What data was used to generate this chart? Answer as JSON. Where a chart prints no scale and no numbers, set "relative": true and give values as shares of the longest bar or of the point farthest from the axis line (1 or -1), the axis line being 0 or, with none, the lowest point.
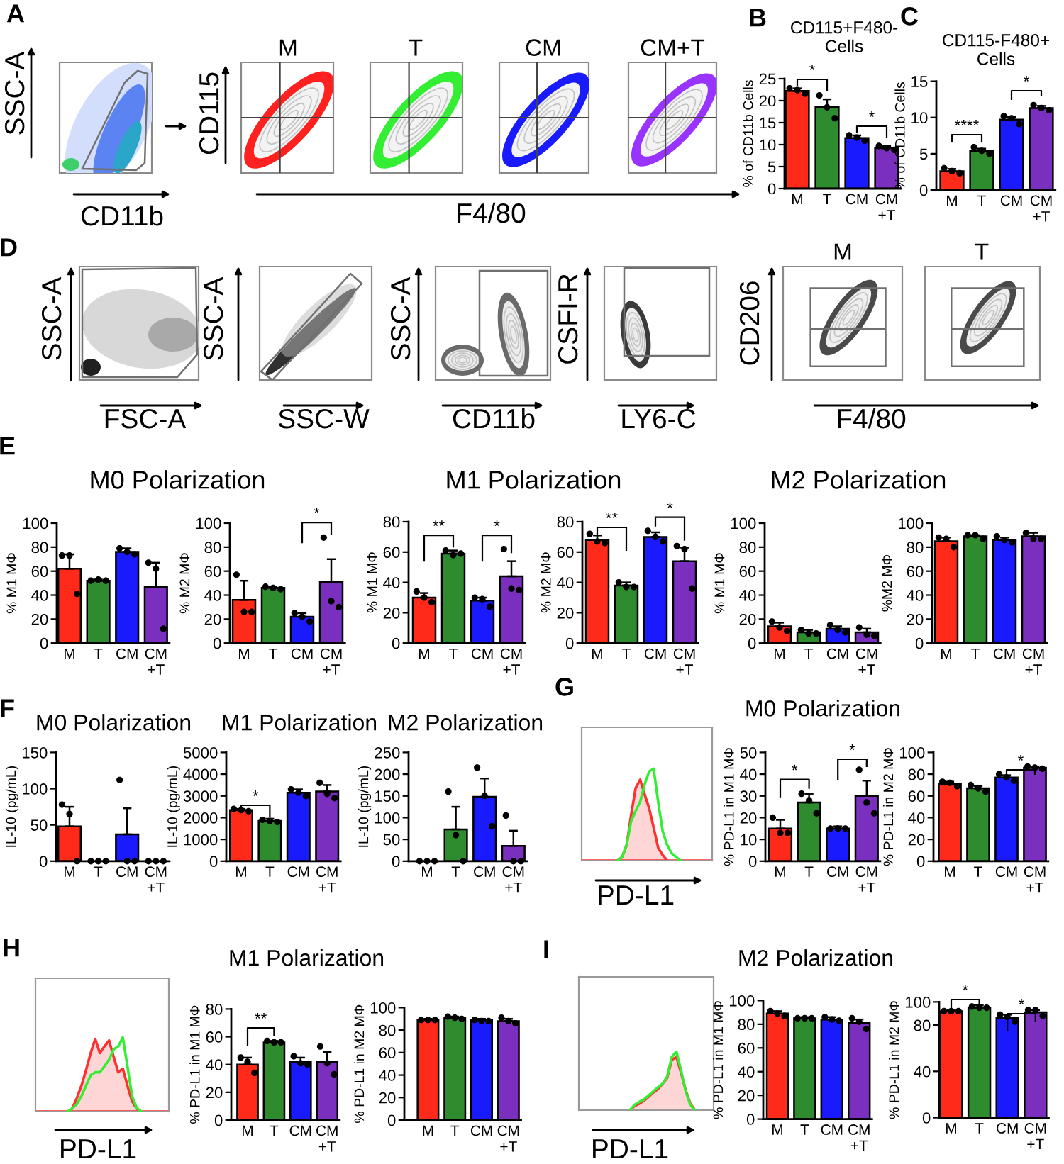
{
  "chart_data": [
    {
      "type": "other",
      "annotations": [
        "A",
        "SSC-A",
        "CD11b",
        "CD115",
        "F4/80",
        "M",
        "T",
        "CM",
        "CM+T"
      ]
    },
    {
      "type": "bar",
      "title": "CD115+F480-\nCells",
      "ylabel": "% of CD11b Cells",
      "categories": [
        "M",
        "T",
        "CM",
        "CM\n+T"
      ],
      "ylim": [
        0,
        25
      ],
      "yticks": [
        0,
        5,
        10,
        15,
        20,
        25
      ],
      "series": [
        {
          "type": "bar",
          "colors": [
            "#ff2a1a",
            "#2e8b2e",
            "#1a1aff",
            "#7b2fbe"
          ],
          "values": [
            22.2,
            18.5,
            11.5,
            9.2
          ],
          "errors": [
            [
              22.2,
              22.8
            ],
            [
              18.5,
              20.3
            ],
            [
              11.5,
              12.1
            ],
            [
              9.2,
              9.7
            ]
          ]
        },
        {
          "type": "scatter",
          "color": "#000000",
          "marker": "circle",
          "x": [
            "M",
            "M",
            "M",
            "T",
            "T",
            "T",
            "CM",
            "CM",
            "CM",
            "CM\n+T",
            "CM\n+T",
            "CM\n+T"
          ],
          "values": [
            22.8,
            22.4,
            21.6,
            21.2,
            18.5,
            16.0,
            12.1,
            11.6,
            10.9,
            9.7,
            9.2,
            8.8
          ]
        }
      ],
      "annotations": [
        "B",
        "*",
        "*"
      ]
    },
    {
      "type": "bar",
      "title": "CD115-F480+\nCells",
      "ylabel": "% of CD11b Cells",
      "categories": [
        "M",
        "T",
        "CM",
        "CM\n+T"
      ],
      "ylim": [
        0,
        15
      ],
      "yticks": [
        0,
        5,
        10,
        15
      ],
      "series": [
        {
          "type": "bar",
          "colors": [
            "#ff2a1a",
            "#2e8b2e",
            "#1a1aff",
            "#7b2fbe"
          ],
          "values": [
            2.6,
            5.4,
            9.7,
            11.3
          ],
          "errors": [
            [
              2.6,
              2.9
            ],
            [
              5.4,
              5.7
            ],
            [
              9.7,
              10.1
            ],
            [
              11.3,
              11.6
            ]
          ]
        },
        {
          "type": "scatter",
          "color": "#000000",
          "marker": "circle",
          "x": [
            "M",
            "M",
            "M",
            "T",
            "T",
            "T",
            "CM",
            "CM",
            "CM",
            "CM\n+T",
            "CM\n+T",
            "CM\n+T"
          ],
          "values": [
            3.0,
            2.6,
            2.3,
            5.9,
            5.4,
            5.0,
            10.2,
            9.9,
            9.1,
            11.7,
            11.3,
            11.0
          ]
        }
      ],
      "annotations": [
        "C",
        "****",
        "*"
      ]
    },
    {
      "type": "other",
      "annotations": [
        "D",
        "SSC-A",
        "SSC-A",
        "SSC-A",
        "CSFI-R",
        "CD206",
        "FSC-A",
        "SSC-W",
        "CD11b",
        "LY6-C",
        "F4/80",
        "M",
        "T"
      ]
    },
    {
      "type": "bar",
      "title": "M0 Polarization",
      "ylabel": "% M1 MΦ",
      "categories": [
        "M",
        "T",
        "CM",
        "CM\n+T"
      ],
      "ylim": [
        0,
        100
      ],
      "yticks": [
        0,
        20,
        40,
        60,
        80,
        100
      ],
      "series": [
        {
          "type": "bar",
          "colors": [
            "#ff2a1a",
            "#2e8b2e",
            "#1a1aff",
            "#7b2fbe"
          ],
          "values": [
            62,
            52,
            76,
            47
          ],
          "errors": [
            [
              62,
              74
            ],
            [
              52,
              53
            ],
            [
              76,
              79
            ],
            [
              47,
              67
            ]
          ]
        },
        {
          "type": "scatter",
          "color": "#000000",
          "marker": "circle",
          "x": [
            "M",
            "M",
            "M",
            "T",
            "T",
            "T",
            "CM",
            "CM",
            "CM",
            "CM\n+T",
            "CM\n+T",
            "CM\n+T"
          ],
          "values": [
            73,
            73,
            41,
            52,
            53,
            52,
            79,
            76,
            74,
            67,
            62,
            12
          ]
        }
      ],
      "annotations": [
        "E"
      ]
    },
    {
      "type": "bar",
      "ylabel": "% M2 MΦ",
      "categories": [
        "M",
        "T",
        "CM",
        "CM\n+T"
      ],
      "ylim": [
        0,
        100
      ],
      "yticks": [
        0,
        20,
        40,
        60,
        80,
        100
      ],
      "series": [
        {
          "type": "bar",
          "colors": [
            "#ff2a1a",
            "#2e8b2e",
            "#1a1aff",
            "#7b2fbe"
          ],
          "values": [
            36,
            46,
            22,
            51
          ],
          "errors": [
            [
              36,
              52
            ],
            [
              46,
              47
            ],
            [
              22,
              25
            ],
            [
              51,
              70
            ]
          ]
        },
        {
          "type": "scatter",
          "color": "#000000",
          "marker": "circle",
          "x": [
            "M",
            "M",
            "M",
            "T",
            "T",
            "T",
            "CM",
            "CM",
            "CM",
            "CM\n+T",
            "CM\n+T",
            "CM\n+T"
          ],
          "values": [
            57,
            26,
            26,
            47,
            46,
            45,
            25,
            22,
            18,
            88,
            35,
            30
          ]
        }
      ],
      "annotations": [
        "*"
      ]
    },
    {
      "type": "bar",
      "title": "M1 Polarization",
      "ylabel": "% M1 MΦ",
      "categories": [
        "M",
        "T",
        "CM",
        "CM\n+T"
      ],
      "ylim": [
        0,
        80
      ],
      "yticks": [
        0,
        20,
        40,
        60,
        80
      ],
      "series": [
        {
          "type": "bar",
          "colors": [
            "#ff2a1a",
            "#2e8b2e",
            "#1a1aff",
            "#7b2fbe"
          ],
          "values": [
            30,
            59,
            28,
            44
          ],
          "errors": [
            [
              30,
              33
            ],
            [
              59,
              61
            ],
            [
              28,
              30
            ],
            [
              44,
              54
            ]
          ]
        },
        {
          "type": "scatter",
          "color": "#000000",
          "marker": "circle",
          "x": [
            "M",
            "M",
            "M",
            "T",
            "T",
            "T",
            "CM",
            "CM",
            "CM",
            "CM\n+T",
            "CM\n+T",
            "CM\n+T"
          ],
          "values": [
            34,
            30,
            27,
            61,
            58,
            59,
            30,
            29,
            24,
            62,
            36,
            35
          ]
        }
      ],
      "annotations": [
        "**",
        "*"
      ]
    },
    {
      "type": "bar",
      "ylabel": "% M2 MΦ",
      "categories": [
        "M",
        "T",
        "CM",
        "CM\n+T"
      ],
      "ylim": [
        0,
        80
      ],
      "yticks": [
        0,
        20,
        40,
        60,
        80
      ],
      "series": [
        {
          "type": "bar",
          "colors": [
            "#ff2a1a",
            "#2e8b2e",
            "#1a1aff",
            "#7b2fbe"
          ],
          "values": [
            68,
            38,
            70,
            54
          ],
          "errors": [
            [
              68,
              71
            ],
            [
              38,
              40
            ],
            [
              70,
              73
            ],
            [
              54,
              63
            ]
          ]
        },
        {
          "type": "scatter",
          "color": "#000000",
          "marker": "circle",
          "x": [
            "M",
            "M",
            "M",
            "T",
            "T",
            "T",
            "CM",
            "CM",
            "CM",
            "CM\n+T",
            "CM\n+T",
            "CM\n+T"
          ],
          "values": [
            72,
            67,
            66,
            40,
            37,
            37,
            74,
            70,
            67,
            64,
            62,
            36
          ]
        }
      ],
      "annotations": [
        "**",
        "*"
      ]
    },
    {
      "type": "bar",
      "title": "M2 Polarization",
      "ylabel": "% M1 MΦ",
      "categories": [
        "M",
        "T",
        "CM",
        "CM\n+T"
      ],
      "ylim": [
        0,
        100
      ],
      "yticks": [
        0,
        20,
        40,
        60,
        80,
        100
      ],
      "series": [
        {
          "type": "bar",
          "colors": [
            "#ff2a1a",
            "#2e8b2e",
            "#1a1aff",
            "#7b2fbe"
          ],
          "values": [
            14,
            9,
            12,
            9
          ],
          "errors": [
            [
              14,
              17
            ],
            [
              9,
              11
            ],
            [
              12,
              14
            ],
            [
              9,
              12
            ]
          ]
        },
        {
          "type": "scatter",
          "color": "#000000",
          "marker": "circle",
          "x": [
            "M",
            "M",
            "M",
            "T",
            "T",
            "T",
            "CM",
            "CM",
            "CM",
            "CM\n+T",
            "CM\n+T",
            "CM\n+T"
          ],
          "values": [
            18,
            13,
            10,
            11,
            8,
            8,
            15,
            11,
            9,
            13,
            7,
            6
          ]
        }
      ]
    },
    {
      "type": "bar",
      "ylabel": "%M2 MΦ",
      "categories": [
        "M",
        "T",
        "CM",
        "CM\n+T"
      ],
      "ylim": [
        0,
        100
      ],
      "yticks": [
        0,
        20,
        40,
        60,
        80,
        100
      ],
      "series": [
        {
          "type": "bar",
          "colors": [
            "#ff2a1a",
            "#2e8b2e",
            "#1a1aff",
            "#7b2fbe"
          ],
          "values": [
            85,
            89,
            86,
            89
          ],
          "errors": [
            [
              85,
              88
            ],
            [
              89,
              90
            ],
            [
              86,
              88
            ],
            [
              89,
              92
            ]
          ]
        },
        {
          "type": "scatter",
          "color": "#000000",
          "marker": "circle",
          "x": [
            "M",
            "M",
            "M",
            "T",
            "T",
            "T",
            "CM",
            "CM",
            "CM",
            "CM\n+T",
            "CM\n+T",
            "CM\n+T"
          ],
          "values": [
            88,
            87,
            80,
            90,
            90,
            87,
            89,
            86,
            84,
            92,
            87,
            87
          ]
        }
      ]
    },
    {
      "type": "bar",
      "title": "M0 Polarization",
      "ylabel": "IL-10 (pg/mL)",
      "categories": [
        "M",
        "T",
        "CM",
        "CM\n+T"
      ],
      "ylim": [
        0,
        150
      ],
      "yticks": [
        0,
        50,
        100,
        150
      ],
      "series": [
        {
          "type": "bar",
          "colors": [
            "#ff2a1a",
            "#2e8b2e",
            "#1a1aff",
            "#7b2fbe"
          ],
          "values": [
            48,
            0,
            37,
            0
          ],
          "errors": [
            [
              48,
              75
            ],
            null,
            [
              37,
              73
            ],
            null
          ]
        },
        {
          "type": "scatter",
          "color": "#000000",
          "marker": "circle",
          "x": [
            "M",
            "M",
            "M",
            "T",
            "T",
            "T",
            "CM",
            "CM",
            "CM",
            "CM\n+T",
            "CM\n+T",
            "CM\n+T"
          ],
          "values": [
            78,
            65,
            0,
            0,
            0,
            0,
            112,
            0,
            0,
            0,
            0,
            0
          ]
        }
      ],
      "annotations": [
        "F"
      ]
    },
    {
      "type": "bar",
      "title": "M1 Polarization",
      "ylabel": "IL-10 (pg/mL)",
      "categories": [
        "M",
        "T",
        "CM",
        "CM\n+T"
      ],
      "ylim": [
        0,
        5000
      ],
      "yticks": [
        0,
        1000,
        2000,
        3000,
        4000,
        5000
      ],
      "series": [
        {
          "type": "bar",
          "colors": [
            "#ff2a1a",
            "#2e8b2e",
            "#1a1aff",
            "#7b2fbe"
          ],
          "values": [
            2350,
            1850,
            3150,
            3200
          ],
          "errors": [
            [
              2350,
              2400
            ],
            [
              1850,
              1950
            ],
            [
              3150,
              3300
            ],
            [
              3200,
              3500
            ]
          ]
        },
        {
          "type": "scatter",
          "color": "#000000",
          "marker": "circle",
          "x": [
            "M",
            "M",
            "M",
            "T",
            "T",
            "T",
            "CM",
            "CM",
            "CM",
            "CM\n+T",
            "CM\n+T",
            "CM\n+T"
          ],
          "values": [
            2400,
            2350,
            2300,
            1900,
            1850,
            1800,
            3300,
            3150,
            3000,
            3600,
            3100,
            2900
          ]
        }
      ],
      "annotations": [
        "*"
      ]
    },
    {
      "type": "bar",
      "title": "M2 Polarization",
      "ylabel": "IL-10 (pg/mL)",
      "categories": [
        "M",
        "T",
        "CM",
        "CM\n+T"
      ],
      "ylim": [
        0,
        250
      ],
      "yticks": [
        0,
        50,
        100,
        150,
        200,
        250
      ],
      "series": [
        {
          "type": "bar",
          "colors": [
            "#ff2a1a",
            "#2e8b2e",
            "#1a1aff",
            "#7b2fbe"
          ],
          "values": [
            0,
            73,
            148,
            35
          ],
          "errors": [
            null,
            [
              73,
              125
            ],
            [
              148,
              190
            ],
            [
              35,
              70
            ]
          ]
        },
        {
          "type": "scatter",
          "color": "#000000",
          "marker": "circle",
          "x": [
            "M",
            "M",
            "M",
            "T",
            "T",
            "T",
            "CM",
            "CM",
            "CM",
            "CM\n+T",
            "CM\n+T",
            "CM\n+T"
          ],
          "values": [
            0,
            0,
            0,
            160,
            60,
            0,
            215,
            150,
            80,
            105,
            0,
            0
          ]
        }
      ]
    },
    {
      "type": "area",
      "xlabel": "PD-L1",
      "relative": true,
      "categories": [
        null,
        null,
        null,
        null,
        null,
        null,
        null,
        null,
        null,
        null,
        null,
        null,
        null,
        null,
        null,
        null,
        null,
        null,
        null,
        null,
        null,
        null,
        null,
        null,
        null,
        null,
        null,
        null,
        null,
        null
      ],
      "series": [
        {
          "type": "area",
          "color": "#ff3030",
          "values": [
            0,
            0,
            0,
            0,
            0,
            0,
            0,
            0,
            0,
            0.04,
            0.17,
            0.5,
            0.79,
            0.88,
            0.72,
            0.57,
            0.36,
            0.14,
            0.06,
            0,
            0,
            0,
            0,
            0,
            0,
            0,
            0,
            0,
            0,
            0
          ]
        },
        {
          "type": "line",
          "color": "#33ee33",
          "values": [
            null,
            null,
            null,
            null,
            null,
            null,
            null,
            null,
            0,
            0.04,
            0.17,
            0.43,
            0.54,
            0.64,
            0.83,
            0.97,
            1.0,
            0.64,
            0.32,
            0.17,
            0.08,
            0.04,
            0,
            null,
            null,
            null,
            null,
            null,
            null,
            null
          ]
        }
      ],
      "annotations": [
        "G"
      ]
    },
    {
      "type": "bar",
      "title": "M0 Polarization",
      "ylabel": "% PD-L1 in M1 MΦ",
      "categories": [
        "M",
        "T",
        "CM",
        "CM\n+T"
      ],
      "ylim": [
        0,
        50
      ],
      "yticks": [
        0,
        10,
        20,
        30,
        40,
        50
      ],
      "series": [
        {
          "type": "bar",
          "colors": [
            "#ff2a1a",
            "#2e8b2e",
            "#1a1aff",
            "#7b2fbe"
          ],
          "values": [
            15,
            27,
            15,
            30
          ],
          "errors": [
            [
              15,
              19
            ],
            [
              27,
              31
            ],
            [
              15,
              16
            ],
            [
              30,
              37
            ]
          ]
        },
        {
          "type": "scatter",
          "color": "#000000",
          "marker": "circle",
          "x": [
            "M",
            "M",
            "M",
            "T",
            "T",
            "T",
            "CM",
            "CM",
            "CM",
            "CM\n+T",
            "CM\n+T",
            "CM\n+T"
          ],
          "values": [
            20,
            13,
            13,
            31,
            28,
            22,
            15,
            15,
            15,
            42,
            27,
            22
          ]
        }
      ],
      "annotations": [
        "*",
        "*"
      ]
    },
    {
      "type": "bar",
      "ylabel": "% PD-L1 in M2 MΦ",
      "categories": [
        "M",
        "T",
        "CM",
        "CM\n+T"
      ],
      "ylim": [
        0,
        100
      ],
      "yticks": [
        0,
        20,
        40,
        60,
        80,
        100
      ],
      "series": [
        {
          "type": "bar",
          "colors": [
            "#ff2a1a",
            "#2e8b2e",
            "#1a1aff",
            "#7b2fbe"
          ],
          "values": [
            71,
            67,
            77,
            86
          ],
          "errors": [
            [
              71,
              73
            ],
            [
              67,
              69
            ],
            [
              77,
              79
            ],
            [
              86,
              87
            ]
          ]
        },
        {
          "type": "scatter",
          "color": "#000000",
          "marker": "circle",
          "x": [
            "M",
            "M",
            "M",
            "T",
            "T",
            "T",
            "CM",
            "CM",
            "CM",
            "CM\n+T",
            "CM\n+T",
            "CM\n+T"
          ],
          "values": [
            73,
            72,
            69,
            70,
            67,
            64,
            80,
            77,
            74,
            87,
            86,
            85
          ]
        }
      ],
      "annotations": [
        "*"
      ]
    },
    {
      "type": "area",
      "xlabel": "PD-L1",
      "relative": true,
      "categories": [
        null,
        null,
        null,
        null,
        null,
        null,
        null,
        null,
        null,
        null,
        null,
        null,
        null,
        null,
        null,
        null,
        null,
        null,
        null,
        null,
        null,
        null,
        null,
        null,
        null,
        null,
        null,
        null,
        null,
        null
      ],
      "series": [
        {
          "type": "area",
          "color": "#ff3030",
          "values": [
            0,
            0,
            0,
            0,
            0,
            0,
            0,
            0,
            0.04,
            0.18,
            0.35,
            0.56,
            0.79,
            0.98,
            0.79,
            0.88,
            0.96,
            0.74,
            0.53,
            0.58,
            0.35,
            0.14,
            0.04,
            0,
            0,
            0,
            0,
            0,
            0,
            0
          ]
        },
        {
          "type": "line",
          "color": "#33ee33",
          "values": [
            null,
            null,
            null,
            null,
            null,
            null,
            null,
            0,
            0.04,
            0.1,
            0.21,
            0.35,
            0.49,
            0.53,
            0.53,
            0.61,
            0.7,
            0.84,
            0.88,
            1.0,
            0.61,
            0.21,
            0.05,
            0,
            null,
            null,
            null,
            null,
            null,
            null
          ]
        }
      ],
      "annotations": [
        "H"
      ]
    },
    {
      "type": "bar",
      "title": "M1 Polarization",
      "ylabel": "% PD-L1 in M1 MΦ",
      "categories": [
        "M",
        "T",
        "CM",
        "CM\n+T"
      ],
      "ylim": [
        0,
        80
      ],
      "yticks": [
        0,
        20,
        40,
        60,
        80
      ],
      "series": [
        {
          "type": "bar",
          "colors": [
            "#ff2a1a",
            "#2e8b2e",
            "#1a1aff",
            "#7b2fbe"
          ],
          "values": [
            40,
            56,
            42,
            42
          ],
          "errors": [
            [
              40,
              45
            ],
            [
              56,
              57
            ],
            [
              42,
              45
            ],
            [
              42,
              49
            ]
          ]
        },
        {
          "type": "scatter",
          "color": "#000000",
          "marker": "circle",
          "x": [
            "M",
            "M",
            "M",
            "T",
            "T",
            "T",
            "CM",
            "CM",
            "CM",
            "CM\n+T",
            "CM\n+T",
            "CM\n+T"
          ],
          "values": [
            45,
            42,
            34,
            57,
            56,
            56,
            46,
            41,
            40,
            53,
            41,
            33
          ]
        }
      ],
      "annotations": [
        "**"
      ]
    },
    {
      "type": "bar",
      "ylabel": "% PD-L1 in M2 MΦ",
      "categories": [
        "M",
        "T",
        "CM",
        "CM\n+T"
      ],
      "ylim": [
        0,
        100
      ],
      "yticks": [
        0,
        20,
        40,
        60,
        80,
        100
      ],
      "series": [
        {
          "type": "bar",
          "colors": [
            "#ff2a1a",
            "#2e8b2e",
            "#1a1aff",
            "#7b2fbe"
          ],
          "values": [
            89,
            91,
            89,
            88
          ],
          "errors": [
            [
              89,
              90
            ],
            [
              91,
              92
            ],
            [
              89,
              90
            ],
            [
              88,
              90
            ]
          ]
        },
        {
          "type": "scatter",
          "color": "#000000",
          "marker": "circle",
          "x": [
            "M",
            "M",
            "M",
            "T",
            "T",
            "T",
            "CM",
            "CM",
            "CM",
            "CM\n+T",
            "CM\n+T",
            "CM\n+T"
          ],
          "values": [
            89,
            89,
            89,
            92,
            91,
            90,
            89,
            88,
            88,
            91,
            88,
            86
          ]
        }
      ]
    },
    {
      "type": "area",
      "xlabel": "PD-L1",
      "relative": true,
      "categories": [
        null,
        null,
        null,
        null,
        null,
        null,
        null,
        null,
        null,
        null,
        null,
        null,
        null,
        null,
        null,
        null,
        null,
        null,
        null,
        null,
        null,
        null,
        null,
        null,
        null,
        null,
        null,
        null,
        null,
        null
      ],
      "series": [
        {
          "type": "area",
          "color": "#ff3030",
          "values": [
            0,
            0,
            0,
            0,
            0,
            0,
            0,
            0,
            0,
            0,
            0,
            0,
            0.07,
            0.11,
            0.16,
            0.23,
            0.3,
            0.36,
            0.45,
            0.55,
            0.86,
            0.91,
            0.64,
            0.34,
            0.11,
            0,
            0,
            0,
            0,
            0
          ]
        },
        {
          "type": "line",
          "color": "#33ee33",
          "values": [
            null,
            null,
            null,
            null,
            null,
            null,
            null,
            null,
            null,
            null,
            null,
            0,
            0.09,
            0.14,
            0.18,
            0.25,
            0.32,
            0.39,
            0.45,
            0.57,
            0.91,
            1.0,
            0.68,
            0.32,
            0.09,
            0,
            null,
            null,
            null,
            null
          ]
        }
      ],
      "annotations": [
        "I"
      ]
    },
    {
      "type": "bar",
      "title": "M2 Polarization",
      "ylabel": "% PD-L1 in M1 MΦ",
      "categories": [
        "M",
        "T",
        "CM",
        "CM\n+T"
      ],
      "ylim": [
        0,
        100
      ],
      "yticks": [
        0,
        20,
        40,
        60,
        80,
        100
      ],
      "series": [
        {
          "type": "bar",
          "colors": [
            "#ff2a1a",
            "#2e8b2e",
            "#1a1aff",
            "#7b2fbe"
          ],
          "values": [
            89,
            85,
            84,
            81
          ],
          "errors": [
            [
              89,
              91
            ],
            [
              85,
              86
            ],
            [
              84,
              86
            ],
            [
              81,
              84
            ]
          ]
        },
        {
          "type": "scatter",
          "color": "#000000",
          "marker": "circle",
          "x": [
            "M",
            "M",
            "M",
            "T",
            "T",
            "T",
            "CM",
            "CM",
            "CM",
            "CM\n+T",
            "CM\n+T",
            "CM\n+T"
          ],
          "values": [
            91,
            89,
            87,
            85,
            85,
            85,
            86,
            84,
            83,
            85,
            82,
            76
          ]
        }
      ]
    },
    {
      "type": "bar",
      "ylabel": "% PD-L1 in M2 MΦ",
      "categories": [
        "M",
        "T",
        "CM",
        "CM\n+T"
      ],
      "ylim": [
        0,
        100
      ],
      "yticks": [
        0,
        40,
        80,
        100
      ],
      "series": [
        {
          "type": "bar",
          "colors": [
            "#ff2a1a",
            "#2e8b2e",
            "#1a1aff",
            "#7b2fbe"
          ],
          "values": [
            92,
            95,
            86,
            91
          ],
          "errors": [
            [
              92,
              93
            ],
            [
              95,
              97
            ],
            [
              86,
              89
            ],
            [
              91,
              93
            ]
          ]
        },
        {
          "type": "scatter",
          "color": "#000000",
          "marker": "circle",
          "x": [
            "M",
            "M",
            "M",
            "T",
            "T",
            "T",
            "CM",
            "CM",
            "CM",
            "CM\n+T",
            "CM\n+T",
            "CM\n+T"
          ],
          "values": [
            92,
            92,
            92,
            96,
            95,
            95,
            89,
            87,
            83,
            93,
            93,
            88
          ]
        }
      ],
      "annotations": [
        "*",
        "*"
      ]
    }
  ]
}
